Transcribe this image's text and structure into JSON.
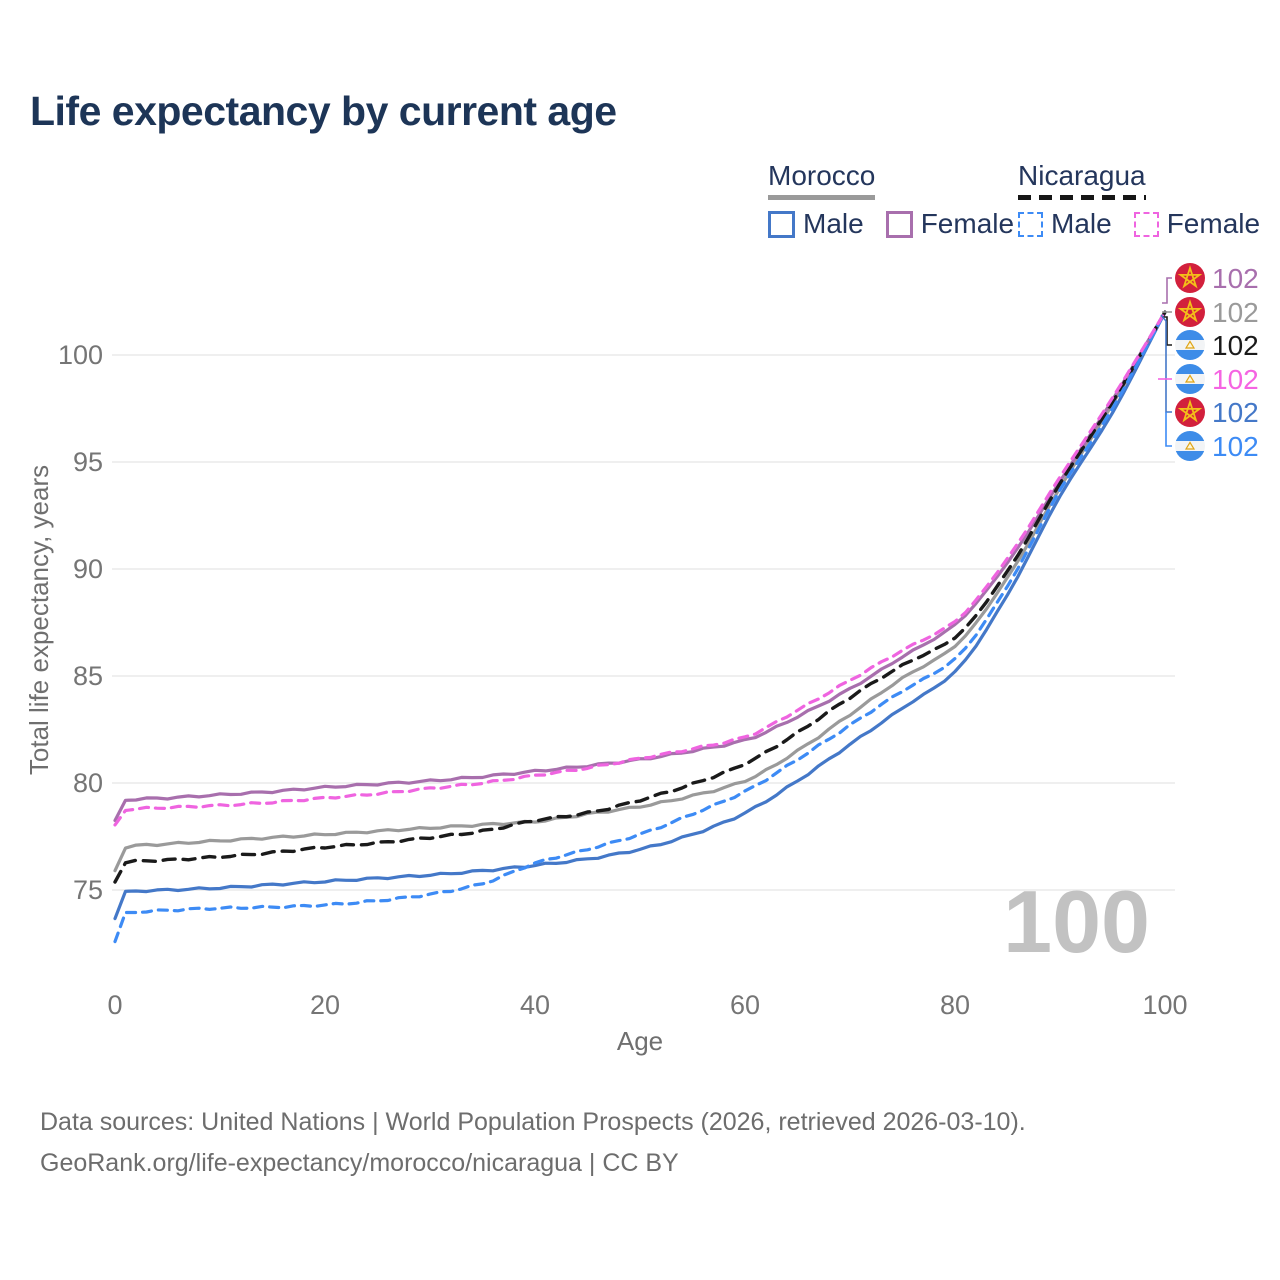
{
  "title": "Life expectancy by current age",
  "legend": {
    "groups": [
      {
        "country": "Morocco",
        "line_style": "solid",
        "items": [
          {
            "label": "Male",
            "color": "#4478c8"
          },
          {
            "label": "Female",
            "color": "#a86fad"
          }
        ]
      },
      {
        "country": "Nicaragua",
        "line_style": "dashed",
        "items": [
          {
            "label": "Male",
            "color": "#3d8bf5"
          },
          {
            "label": "Female",
            "color": "#ef64e0"
          }
        ]
      }
    ]
  },
  "watermark": "100",
  "end_labels": [
    {
      "value": "102",
      "flag": "morocco",
      "series": "Morocco Female",
      "color": "#a86fad"
    },
    {
      "value": "102",
      "flag": "morocco",
      "series": "Morocco",
      "color": "#9a9a9a"
    },
    {
      "value": "102",
      "flag": "nicaragua",
      "series": "Nicaragua",
      "color": "#1a1a1a"
    },
    {
      "value": "102",
      "flag": "nicaragua",
      "series": "Nicaragua Female",
      "color": "#f564e2"
    },
    {
      "value": "102",
      "flag": "morocco",
      "series": "Morocco Male",
      "color": "#4478c8"
    },
    {
      "value": "102",
      "flag": "nicaragua",
      "series": "Nicaragua Male",
      "color": "#3d8bf5"
    }
  ],
  "footer": {
    "line1": "Data sources: United Nations | World Population Prospects (2026, retrieved 2026-03-10).",
    "line2": "GeoRank.org/life-expectancy/morocco/nicaragua | CC BY"
  },
  "chart_data": {
    "type": "line",
    "title": "Life expectancy by current age",
    "xlabel": "Age",
    "ylabel": "Total life expectancy, years",
    "xlim": [
      0,
      100
    ],
    "ylim": [
      72,
      103
    ],
    "xticks": [
      0,
      20,
      40,
      60,
      80,
      100
    ],
    "yticks": [
      75,
      80,
      85,
      90,
      95,
      100
    ],
    "grid": "horizontal",
    "legend_position": "top-right",
    "x": [
      0,
      1,
      5,
      10,
      15,
      20,
      25,
      30,
      35,
      40,
      45,
      50,
      55,
      60,
      65,
      70,
      75,
      80,
      85,
      90,
      95,
      100
    ],
    "series": [
      {
        "name": "Morocco (both sexes)",
        "country": "Morocco",
        "sex": "both",
        "color": "#9a9a9a",
        "dash": "",
        "values": [
          75.9,
          77.0,
          77.15,
          77.3,
          77.45,
          77.6,
          77.75,
          77.9,
          78.05,
          78.2,
          78.55,
          78.9,
          79.4,
          80.1,
          81.5,
          83.2,
          84.9,
          86.4,
          89.6,
          93.8,
          97.7,
          102
        ]
      },
      {
        "name": "Morocco Male",
        "country": "Morocco",
        "sex": "male",
        "color": "#4478c8",
        "dash": "",
        "values": [
          73.7,
          74.9,
          75.0,
          75.1,
          75.25,
          75.4,
          75.55,
          75.7,
          75.9,
          76.15,
          76.45,
          76.9,
          77.6,
          78.6,
          80.1,
          81.8,
          83.5,
          85.2,
          88.8,
          93.4,
          97.3,
          102
        ]
      },
      {
        "name": "Morocco Female",
        "country": "Morocco",
        "sex": "female",
        "color": "#a86fad",
        "dash": "",
        "values": [
          78.2,
          79.2,
          79.3,
          79.45,
          79.6,
          79.8,
          79.95,
          80.1,
          80.3,
          80.55,
          80.8,
          81.1,
          81.5,
          82.0,
          83.1,
          84.4,
          85.9,
          87.4,
          90.3,
          94.1,
          97.9,
          102
        ]
      },
      {
        "name": "Nicaragua (both sexes)",
        "country": "Nicaragua",
        "sex": "both",
        "color": "#1a1a1a",
        "dash": "12 8",
        "values": [
          75.4,
          76.3,
          76.4,
          76.55,
          76.75,
          77.0,
          77.2,
          77.45,
          77.75,
          78.25,
          78.6,
          79.2,
          79.95,
          80.9,
          82.35,
          84.0,
          85.5,
          86.8,
          89.9,
          94.0,
          97.8,
          102
        ]
      },
      {
        "name": "Nicaragua Male",
        "country": "Nicaragua",
        "sex": "male",
        "color": "#3d8bf5",
        "dash": "9 7",
        "values": [
          72.6,
          73.9,
          74.05,
          74.15,
          74.2,
          74.3,
          74.5,
          74.8,
          75.3,
          76.25,
          76.9,
          77.6,
          78.55,
          79.6,
          81.1,
          82.7,
          84.3,
          85.8,
          89.2,
          93.7,
          97.5,
          102
        ]
      },
      {
        "name": "Nicaragua Female",
        "country": "Nicaragua",
        "sex": "female",
        "color": "#ef64e0",
        "dash": "9 7",
        "values": [
          78.0,
          78.75,
          78.85,
          78.95,
          79.1,
          79.3,
          79.5,
          79.75,
          80.0,
          80.35,
          80.7,
          81.15,
          81.6,
          82.15,
          83.4,
          84.8,
          86.2,
          87.55,
          90.5,
          94.3,
          98.0,
          102
        ]
      }
    ],
    "end_value_label": "102"
  }
}
